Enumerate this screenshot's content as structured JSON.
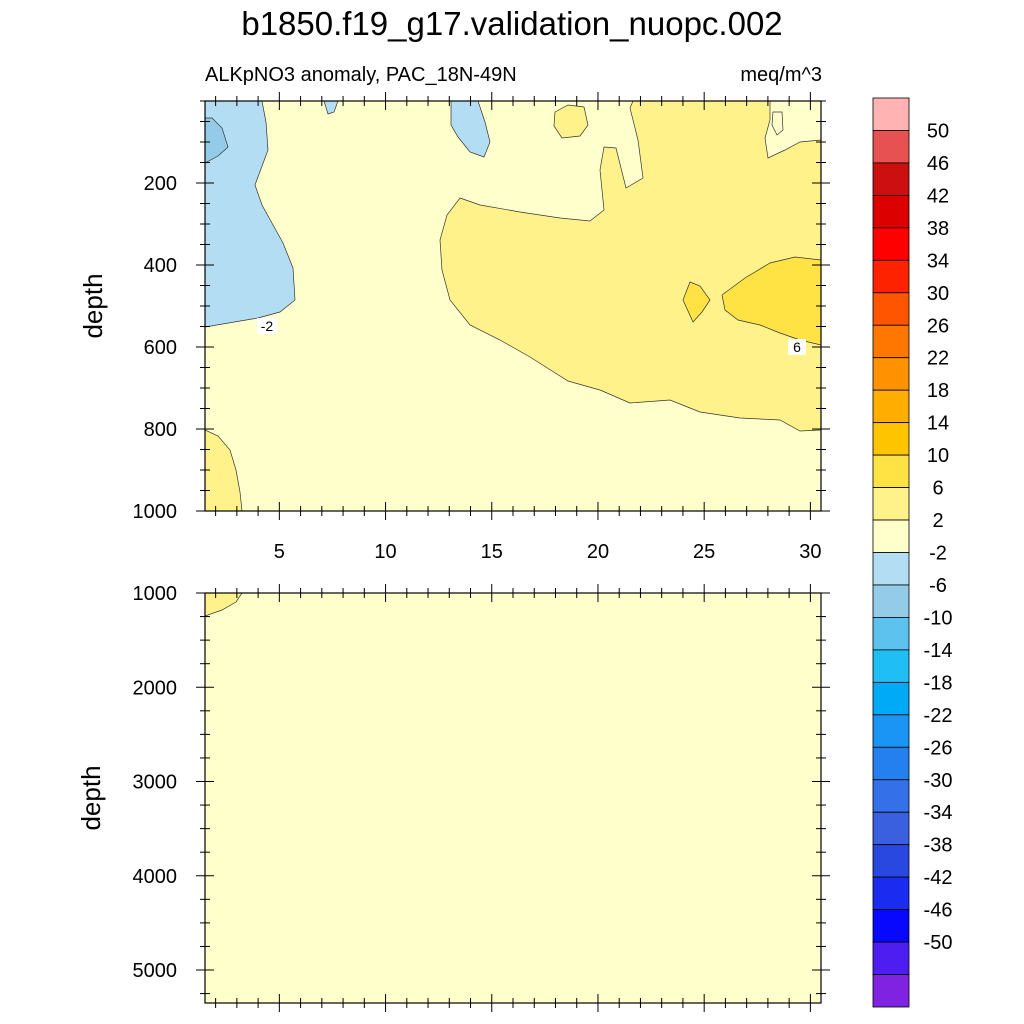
{
  "figure": {
    "title": "b1850.f19_g17.validation_nuopc.002",
    "left_string": "ALKpNO3 anomaly, PAC_18N-49N",
    "right_string": "meq/m^3"
  },
  "chart_data": [
    {
      "type": "contour",
      "panel": "upper",
      "xlabel": "",
      "ylabel": "depth",
      "xlim": [
        1.5,
        30.5
      ],
      "ylim": [
        1000,
        0
      ],
      "x_ticks": [
        "5",
        "10",
        "15",
        "20",
        "25",
        "30"
      ],
      "y_ticks": [
        "200",
        "400",
        "600",
        "800",
        "1000"
      ],
      "contour_labels": [
        "-2",
        "6"
      ],
      "filled_regions": [
        {
          "level": "-2 to 2",
          "color": "#ffffcc",
          "area": "background"
        },
        {
          "level": "-6 to -2",
          "color": "#b3ddf2",
          "area": "upper-left column, surface to ~550 m"
        },
        {
          "level": "-10 to -6",
          "color": "#93cbe9",
          "area": "surface corner at x ~1.5-2.5"
        },
        {
          "level": "-6 to -2",
          "color": "#b3ddf2",
          "area": "small patches near surface at x ~7 and x ~13"
        },
        {
          "level": "2 to 6",
          "color": "#fff28a",
          "area": "x ~13-30.5, depth ~230-800 m, and near-surface strips at x ~17-30"
        },
        {
          "level": "2 to 6",
          "color": "#fff28a",
          "area": "x ~1.5-3, depth ~850-1000 m"
        },
        {
          "level": "6 to 10",
          "color": "#ffe345",
          "area": "x ~26-30.5, depth ~380-580 m, plus small cell at x ~24.5"
        }
      ]
    },
    {
      "type": "contour",
      "panel": "lower",
      "xlabel": "",
      "ylabel": "depth",
      "xlim": [
        1.5,
        30.5
      ],
      "ylim": [
        5350,
        1000
      ],
      "y_ticks": [
        "1000",
        "2000",
        "3000",
        "4000",
        "5000"
      ],
      "filled_regions": [
        {
          "level": "-2 to 2",
          "color": "#ffffcc",
          "area": "entire panel"
        },
        {
          "level": "2 to 6",
          "color": "#fff28a",
          "area": "small corner at x ~1.5-3, depth ~1000-1200 m"
        }
      ]
    }
  ],
  "colorbar": {
    "labels": [
      "50",
      "46",
      "42",
      "38",
      "34",
      "30",
      "26",
      "22",
      "18",
      "14",
      "10",
      "6",
      "2",
      "-2",
      "-6",
      "-10",
      "-14",
      "-18",
      "-22",
      "-26",
      "-30",
      "-34",
      "-38",
      "-42",
      "-46",
      "-50"
    ],
    "colors": [
      "#ffb3b3",
      "#e85151",
      "#cc1010",
      "#dd0000",
      "#ff0000",
      "#ff2200",
      "#ff5500",
      "#ff7700",
      "#ff9200",
      "#ffae00",
      "#ffc400",
      "#ffe345",
      "#fff28a",
      "#ffffcc",
      "#b3ddf2",
      "#93cbe9",
      "#5ec2ee",
      "#1fbff5",
      "#00aaf7",
      "#1a94f5",
      "#2580ef",
      "#3470e8",
      "#3a60e0",
      "#2848df",
      "#1a2cf0",
      "#0808ff",
      "#4e1ef0",
      "#7f22e2"
    ]
  }
}
